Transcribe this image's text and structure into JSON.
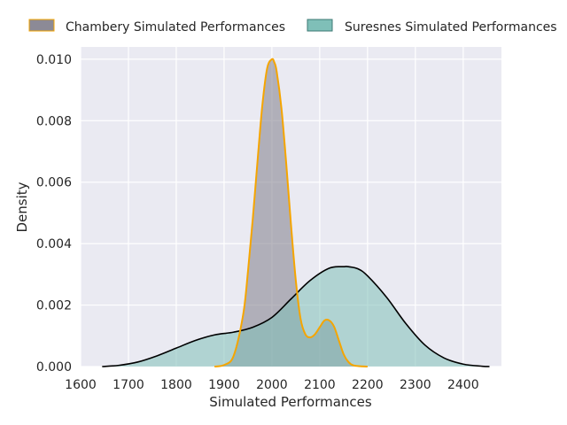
{
  "chart_data": {
    "type": "area",
    "title": "",
    "xlabel": "Simulated Performances",
    "ylabel": "Density",
    "xlim": [
      1600,
      2480
    ],
    "ylim": [
      0,
      0.0104
    ],
    "x_ticks": [
      1600,
      1700,
      1800,
      1900,
      2000,
      2100,
      2200,
      2300,
      2400
    ],
    "y_ticks": [
      0.0,
      0.002,
      0.004,
      0.006,
      0.008,
      0.01
    ],
    "y_tick_labels": [
      "0.000",
      "0.002",
      "0.004",
      "0.006",
      "0.008",
      "0.010"
    ],
    "grid": true,
    "legend_position": "top, outside plot, horizontal",
    "series": [
      {
        "name": "Chambery Simulated Performances",
        "fill_color": "#8c8a96",
        "line_color": "#f5a500",
        "x": [
          1880,
          1900,
          1920,
          1940,
          1950,
          1960,
          1970,
          1980,
          1990,
          2000,
          2005,
          2010,
          2020,
          2030,
          2040,
          2050,
          2060,
          2070,
          2080,
          2090,
          2100,
          2110,
          2120,
          2130,
          2140,
          2150,
          2160,
          2170,
          2185,
          2200
        ],
        "values": [
          0.0,
          5e-05,
          0.00035,
          0.0017,
          0.0031,
          0.0048,
          0.0067,
          0.0085,
          0.0097,
          0.01,
          0.0099,
          0.0096,
          0.0084,
          0.0066,
          0.0046,
          0.0028,
          0.00155,
          0.00105,
          0.00095,
          0.00105,
          0.00128,
          0.0015,
          0.0015,
          0.0013,
          0.00085,
          0.0004,
          0.00015,
          4e-05,
          1e-05,
          0.0
        ]
      },
      {
        "name": "Suresnes Simulated Performances",
        "fill_color": "#7fbfb8",
        "line_color": "#000000",
        "x": [
          1645,
          1680,
          1720,
          1760,
          1800,
          1840,
          1880,
          1920,
          1960,
          2000,
          2040,
          2080,
          2120,
          2150,
          2160,
          2180,
          2200,
          2240,
          2280,
          2320,
          2360,
          2400,
          2440,
          2455
        ],
        "values": [
          0.0,
          4e-05,
          0.00015,
          0.00035,
          0.0006,
          0.00085,
          0.00103,
          0.00112,
          0.00128,
          0.0016,
          0.0022,
          0.0028,
          0.0032,
          0.00325,
          0.00325,
          0.00318,
          0.00295,
          0.00225,
          0.0014,
          0.0007,
          0.00028,
          8e-05,
          1e-05,
          0.0
        ]
      }
    ]
  }
}
